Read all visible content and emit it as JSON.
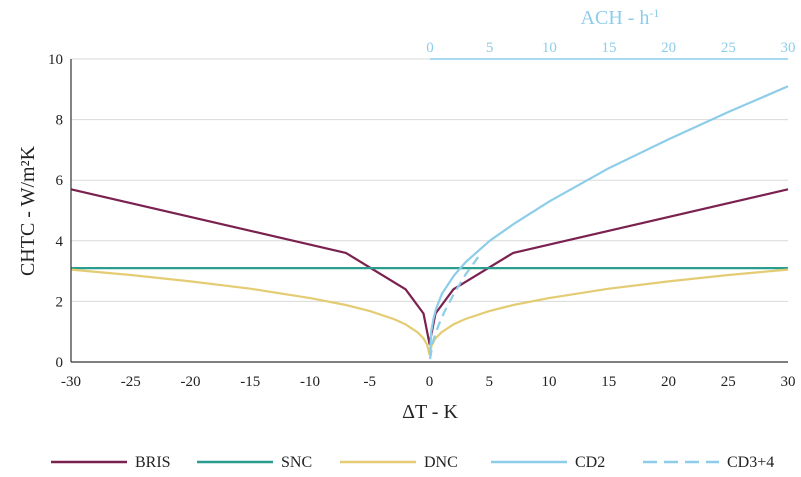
{
  "chart_data": {
    "type": "line",
    "xlabel": "ΔT - K",
    "ylabel": "CHTC - W/m²K",
    "top_xlabel_main": "ACH - h",
    "top_xlabel_exp": "-1",
    "xlim": [
      -30,
      30
    ],
    "ylim": [
      0,
      10
    ],
    "top_xlim": [
      0,
      30
    ],
    "x_ticks": [
      -30,
      -25,
      -20,
      -15,
      -10,
      -5,
      0,
      5,
      10,
      15,
      20,
      25,
      30
    ],
    "y_ticks": [
      0,
      2,
      4,
      6,
      8,
      10
    ],
    "top_x_ticks": [
      0,
      5,
      10,
      15,
      20,
      25,
      30
    ],
    "grid": "horizontal",
    "legend_position": "bottom",
    "series": [
      {
        "name": "BRIS",
        "color": "#7b2150",
        "style": "solid",
        "axis": "bottom",
        "x": [
          -30,
          -7,
          -2,
          -0.5,
          0,
          0.5,
          2,
          7,
          30
        ],
        "y": [
          5.7,
          3.6,
          2.4,
          1.6,
          0.6,
          1.6,
          2.4,
          3.6,
          5.7
        ]
      },
      {
        "name": "SNC",
        "color": "#2a9d8f",
        "style": "solid",
        "axis": "bottom",
        "x": [
          -30,
          30
        ],
        "y": [
          3.1,
          3.1
        ]
      },
      {
        "name": "DNC",
        "color": "#e3cc73",
        "style": "solid",
        "axis": "bottom",
        "x": [
          -30,
          -25,
          -20,
          -15,
          -10,
          -7,
          -5,
          -3,
          -2,
          -1,
          -0.5,
          -0.2,
          0,
          0.2,
          0.5,
          1,
          2,
          3,
          5,
          7,
          10,
          15,
          20,
          25,
          30
        ],
        "y": [
          3.05,
          2.87,
          2.66,
          2.42,
          2.11,
          1.88,
          1.68,
          1.42,
          1.24,
          0.98,
          0.78,
          0.57,
          0.25,
          0.57,
          0.78,
          0.98,
          1.24,
          1.42,
          1.68,
          1.88,
          2.11,
          2.42,
          2.66,
          2.87,
          3.05
        ]
      },
      {
        "name": "CD2",
        "color": "#8ecdea",
        "style": "solid",
        "axis": "top",
        "x": [
          0,
          0.1,
          0.3,
          0.5,
          1,
          2,
          3,
          4,
          5,
          7,
          10,
          15,
          20,
          25,
          30
        ],
        "y": [
          0.2,
          1.0,
          1.45,
          1.75,
          2.25,
          2.85,
          3.3,
          3.65,
          4.0,
          4.55,
          5.3,
          6.4,
          7.35,
          8.25,
          9.1
        ]
      },
      {
        "name": "CD3+4",
        "color": "#8ecdea",
        "style": "dashed",
        "axis": "top",
        "x": [
          0,
          0.3,
          0.7,
          1.2,
          2,
          3,
          4.2
        ],
        "y": [
          0.1,
          0.75,
          1.2,
          1.65,
          2.25,
          2.9,
          3.55
        ]
      }
    ]
  }
}
